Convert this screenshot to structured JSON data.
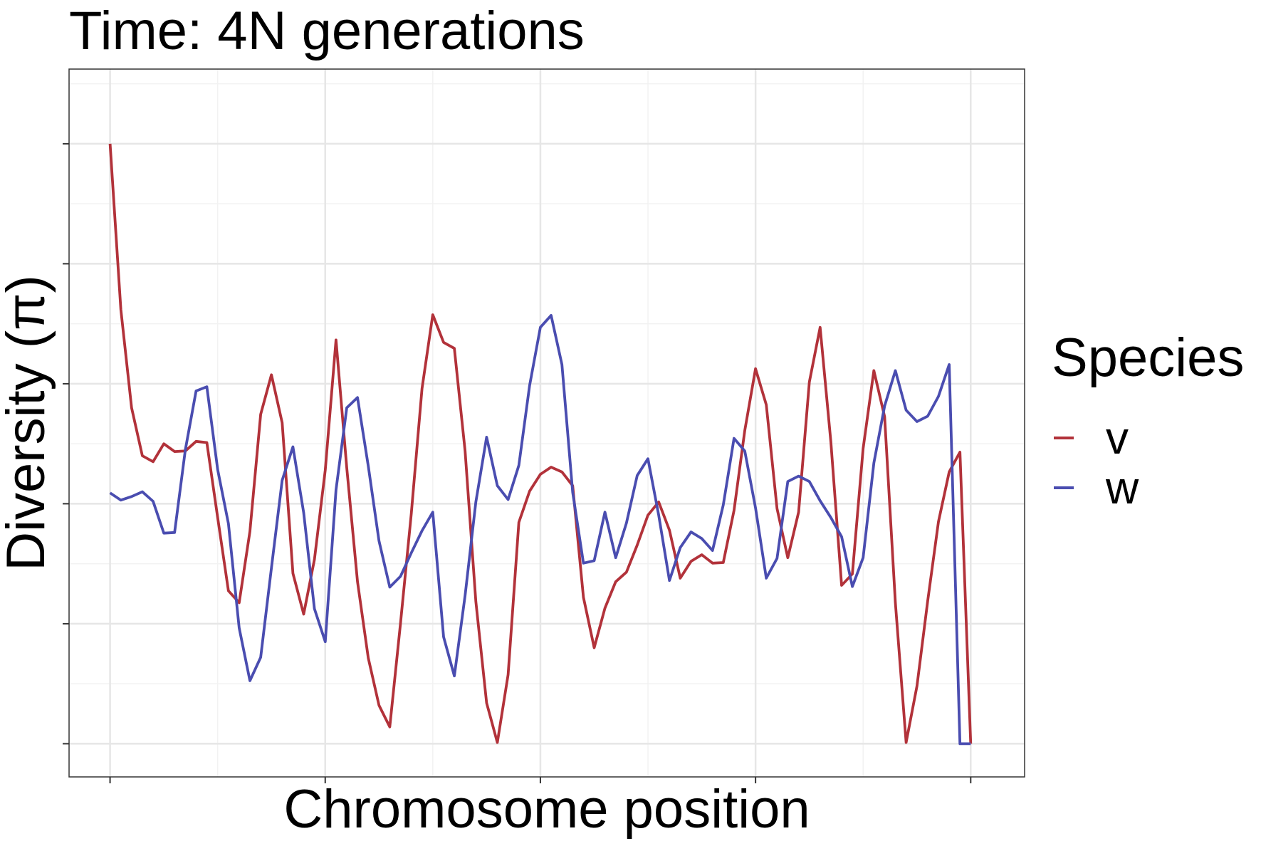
{
  "chart_data": {
    "type": "line",
    "title": "Time: 4N generations",
    "xlabel": "Chromosome position",
    "ylabel": "Diversity (π)",
    "x_tick_labels_shown": false,
    "y_tick_labels_shown": false,
    "grid": true,
    "legend": {
      "title": "Species",
      "placement": "right"
    },
    "x": [
      1,
      2,
      3,
      4,
      5,
      6,
      7,
      8,
      9,
      10,
      11,
      12,
      13,
      14,
      15,
      16,
      17,
      18,
      19,
      20,
      21,
      22,
      23,
      24,
      25,
      26,
      27,
      28,
      29,
      30,
      31,
      32,
      33,
      34,
      35,
      36,
      37,
      38,
      39,
      40,
      41,
      42,
      43,
      44,
      45,
      46,
      47,
      48,
      49,
      50,
      51,
      52,
      53,
      54,
      55,
      56,
      57,
      58,
      59,
      60,
      61,
      62,
      63,
      64,
      65,
      66,
      67,
      68,
      69,
      70,
      71,
      72,
      73,
      74,
      75,
      76,
      77,
      78,
      79,
      80,
      81
    ],
    "xlim": [
      -2.81,
      86.01
    ],
    "ylim": [
      -0.0553,
      1.1245
    ],
    "series": [
      {
        "name": "v",
        "color": "#b2323a",
        "values": [
          1.0,
          0.724,
          0.56,
          0.48,
          0.47,
          0.5,
          0.487,
          0.488,
          0.504,
          0.502,
          0.377,
          0.255,
          0.235,
          0.354,
          0.549,
          0.615,
          0.535,
          0.284,
          0.216,
          0.307,
          0.456,
          0.673,
          0.46,
          0.27,
          0.143,
          0.064,
          0.028,
          0.201,
          0.383,
          0.592,
          0.715,
          0.669,
          0.659,
          0.488,
          0.237,
          0.068,
          0.002,
          0.115,
          0.369,
          0.421,
          0.449,
          0.461,
          0.453,
          0.43,
          0.244,
          0.16,
          0.226,
          0.27,
          0.286,
          0.331,
          0.381,
          0.403,
          0.356,
          0.276,
          0.304,
          0.315,
          0.301,
          0.302,
          0.389,
          0.522,
          0.625,
          0.565,
          0.392,
          0.31,
          0.386,
          0.603,
          0.694,
          0.503,
          0.264,
          0.283,
          0.492,
          0.622,
          0.545,
          0.235,
          0.002,
          0.096,
          0.238,
          0.37,
          0.453,
          0.486,
          0.0
        ]
      },
      {
        "name": "w",
        "color": "#4a4db0",
        "values": [
          0.418,
          0.406,
          0.412,
          0.42,
          0.404,
          0.351,
          0.352,
          0.49,
          0.588,
          0.595,
          0.457,
          0.367,
          0.193,
          0.105,
          0.144,
          0.293,
          0.439,
          0.495,
          0.385,
          0.225,
          0.17,
          0.423,
          0.56,
          0.577,
          0.463,
          0.338,
          0.261,
          0.279,
          0.318,
          0.355,
          0.386,
          0.178,
          0.113,
          0.247,
          0.403,
          0.511,
          0.43,
          0.407,
          0.464,
          0.597,
          0.694,
          0.714,
          0.632,
          0.419,
          0.301,
          0.305,
          0.386,
          0.31,
          0.368,
          0.447,
          0.475,
          0.381,
          0.272,
          0.327,
          0.353,
          0.342,
          0.322,
          0.398,
          0.509,
          0.488,
          0.393,
          0.276,
          0.309,
          0.437,
          0.446,
          0.437,
          0.405,
          0.377,
          0.345,
          0.262,
          0.31,
          0.468,
          0.563,
          0.622,
          0.556,
          0.537,
          0.546,
          0.579,
          0.632,
          0.0,
          0.0
        ]
      }
    ]
  }
}
